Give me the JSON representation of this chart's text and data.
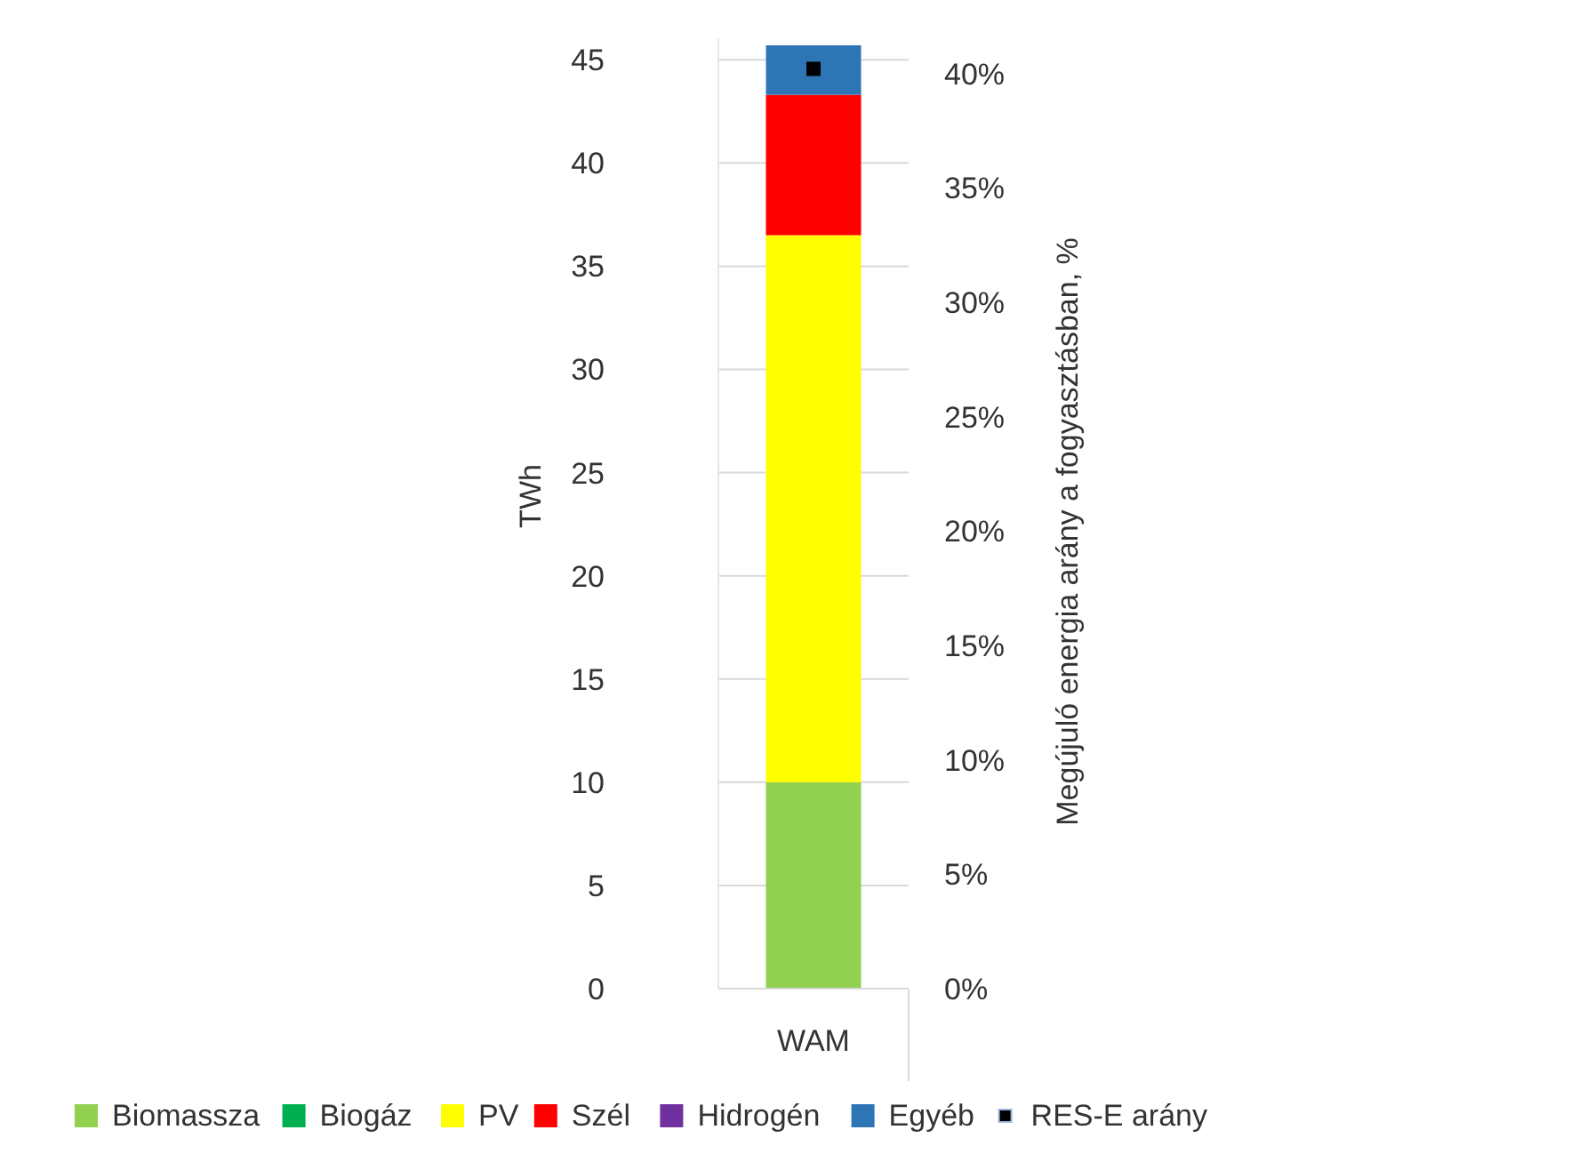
{
  "chart_data": {
    "type": "bar",
    "stacked": true,
    "categories": [
      "WAM"
    ],
    "ylabel": "TWh",
    "y2label": "Megújuló energia arány a fogyasztásban, %",
    "ylim": [
      0,
      46
    ],
    "yticks": [
      0,
      5,
      10,
      15,
      20,
      25,
      30,
      35,
      40,
      45
    ],
    "y2lim": [
      0,
      41.5
    ],
    "y2ticks": [
      {
        "value": 0,
        "label": "0%"
      },
      {
        "value": 5,
        "label": "5%"
      },
      {
        "value": 10,
        "label": "10%"
      },
      {
        "value": 15,
        "label": "15%"
      },
      {
        "value": 20,
        "label": "20%"
      },
      {
        "value": 25,
        "label": "25%"
      },
      {
        "value": 30,
        "label": "30%"
      },
      {
        "value": 35,
        "label": "35%"
      },
      {
        "value": 40,
        "label": "40%"
      }
    ],
    "grid": "y",
    "legend": "bottom",
    "series": [
      {
        "name": "Biomassza",
        "color": "#92d050",
        "values": [
          10.0
        ]
      },
      {
        "name": "Biogáz",
        "color": "#00b050",
        "values": [
          0
        ]
      },
      {
        "name": "PV",
        "color": "#ffff00",
        "values": [
          26.5
        ]
      },
      {
        "name": "Szél",
        "color": "#ff0000",
        "values": [
          6.8
        ]
      },
      {
        "name": "Hidrogén",
        "color": "#7030a0",
        "values": [
          0
        ]
      },
      {
        "name": "Egyéb",
        "color": "#2e75b6",
        "values": [
          2.4
        ]
      },
      {
        "name": "RES-E arány",
        "color": "#000000",
        "type": "scatter",
        "axis": "y2",
        "marker": "square",
        "values": [
          40.2
        ]
      }
    ]
  }
}
